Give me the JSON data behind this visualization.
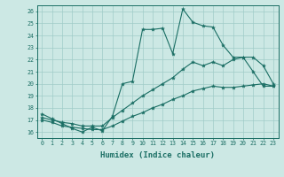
{
  "xlabel": "Humidex (Indice chaleur)",
  "bg_color": "#cce8e4",
  "grid_color": "#a0ccc8",
  "line_color": "#1a6e64",
  "xlim": [
    -0.5,
    23.5
  ],
  "ylim": [
    15.5,
    26.5
  ],
  "xticks": [
    0,
    1,
    2,
    3,
    4,
    5,
    6,
    7,
    8,
    9,
    10,
    11,
    12,
    13,
    14,
    15,
    16,
    17,
    18,
    19,
    20,
    21,
    22,
    23
  ],
  "yticks": [
    16,
    17,
    18,
    19,
    20,
    21,
    22,
    23,
    24,
    25,
    26
  ],
  "line1_x": [
    0,
    1,
    2,
    3,
    4,
    5,
    6,
    7,
    8,
    9,
    10,
    11,
    12,
    13,
    14,
    15,
    16,
    17,
    18,
    19,
    20,
    21,
    22,
    23
  ],
  "line1_y": [
    17.5,
    17.1,
    16.7,
    16.3,
    16.0,
    16.4,
    16.1,
    17.3,
    20.0,
    20.2,
    24.5,
    24.5,
    24.6,
    22.5,
    26.2,
    25.1,
    24.8,
    24.7,
    23.2,
    22.2,
    22.2,
    21.0,
    19.8,
    19.8
  ],
  "line2_x": [
    0,
    1,
    2,
    3,
    4,
    5,
    6,
    7,
    8,
    9,
    10,
    11,
    12,
    13,
    14,
    15,
    16,
    17,
    18,
    19,
    20,
    21,
    22,
    23
  ],
  "line2_y": [
    17.2,
    17.0,
    16.8,
    16.7,
    16.5,
    16.5,
    16.5,
    17.2,
    17.8,
    18.4,
    19.0,
    19.5,
    20.0,
    20.5,
    21.2,
    21.8,
    21.5,
    21.8,
    21.5,
    22.0,
    22.2,
    22.2,
    21.5,
    20.0
  ],
  "line3_x": [
    0,
    1,
    2,
    3,
    4,
    5,
    6,
    7,
    8,
    9,
    10,
    11,
    12,
    13,
    14,
    15,
    16,
    17,
    18,
    19,
    20,
    21,
    22,
    23
  ],
  "line3_y": [
    17.0,
    16.8,
    16.5,
    16.4,
    16.3,
    16.2,
    16.2,
    16.5,
    16.9,
    17.3,
    17.6,
    18.0,
    18.3,
    18.7,
    19.0,
    19.4,
    19.6,
    19.8,
    19.7,
    19.7,
    19.8,
    19.9,
    20.0,
    19.8
  ]
}
